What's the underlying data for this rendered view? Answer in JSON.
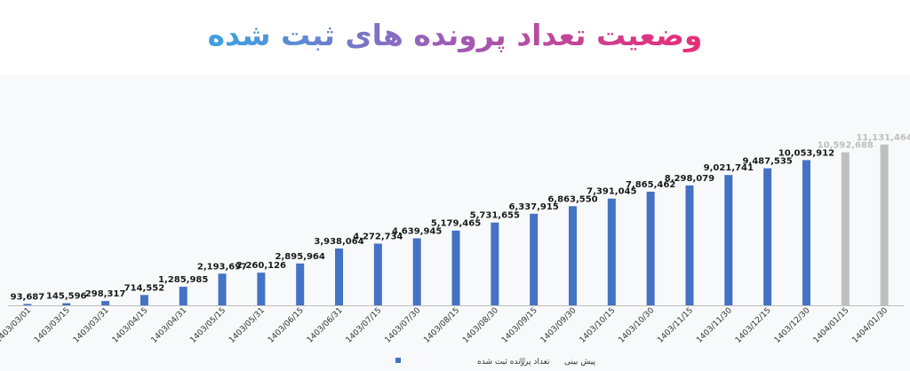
{
  "title": "وضعیت تعداد پرونده های ثبت شده",
  "colors": {
    "title_left": "#e4307a",
    "title_right": "#3f9fe0",
    "registered": "#4472c4",
    "forecast": "#bfbfbf",
    "axis": "#bfbfbf",
    "label_dark": "#1a1a1a"
  },
  "chart_data": {
    "type": "bar",
    "categories": [
      "1403/03/01",
      "1403/03/15",
      "1403/03/31",
      "1403/04/15",
      "1403/04/31",
      "1403/05/15",
      "1403/05/31",
      "1403/06/15",
      "1403/06/31",
      "1403/07/15",
      "1403/07/30",
      "1403/08/15",
      "1403/08/30",
      "1403/09/15",
      "1403/09/30",
      "1403/10/15",
      "1403/10/30",
      "1403/11/15",
      "1403/11/30",
      "1403/12/15",
      "1403/12/30",
      "1404/01/15",
      "1404/01/30"
    ],
    "series": [
      {
        "name": "تعداد پرونده ثبت شده",
        "values": [
          93687,
          145596,
          298317,
          714552,
          1285985,
          2193697,
          2260126,
          2895964,
          3938064,
          4272734,
          4639945,
          5179465,
          5731655,
          6337915,
          6863550,
          7391045,
          7865462,
          8298079,
          9021741,
          9487535,
          10053912,
          null,
          null
        ],
        "labels": [
          "93,687",
          "145,596",
          "298,317",
          "714,552",
          "1,285,985",
          "2,193,697",
          "2,260,126",
          "2,895,964",
          "3,938,064",
          "4,272,734",
          "4,639,945",
          "5,179,465",
          "5,731,655",
          "6,337,915",
          "6,863,550",
          "7,391,045",
          "7,865,462",
          "8,298,079",
          "9,021,741",
          "9,487,535",
          "10,053,912",
          "",
          ""
        ]
      },
      {
        "name": "پیش بینی",
        "values": [
          null,
          null,
          null,
          null,
          null,
          null,
          null,
          null,
          null,
          null,
          null,
          null,
          null,
          null,
          null,
          null,
          null,
          null,
          null,
          null,
          null,
          10592688,
          11131464
        ],
        "labels": [
          "",
          "",
          "",
          "",
          "",
          "",
          "",
          "",
          "",
          "",
          "",
          "",
          "",
          "",
          "",
          "",
          "",
          "",
          "",
          "",
          "",
          "10,592,688",
          "11,131,464"
        ]
      }
    ],
    "ylim": [
      0,
      11800000
    ],
    "grid": false,
    "legend_position": "bottom"
  }
}
